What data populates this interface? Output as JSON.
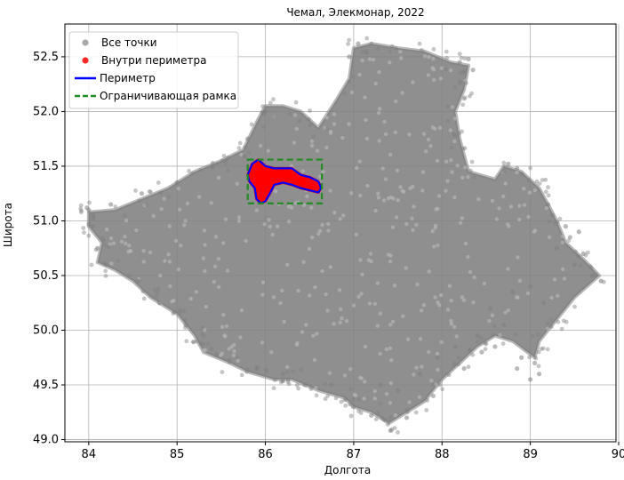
{
  "chart_data": {
    "type": "scatter",
    "title": "Чемал, Элекмонар, 2022",
    "xlabel": "Долгота",
    "ylabel": "Широта",
    "xlim": [
      83.73,
      89.97
    ],
    "ylim": [
      48.98,
      52.8
    ],
    "xticks": [
      "84",
      "85",
      "86",
      "87",
      "88",
      "89",
      "90"
    ],
    "yticks": [
      "49.0",
      "49.5",
      "50.0",
      "50.5",
      "51.0",
      "51.5",
      "52.0",
      "52.5"
    ],
    "grid": true,
    "legend_position": "top-left",
    "colors": {
      "all_points": "#808080",
      "inside": "#ff0000",
      "perimeter": "#0000ff",
      "bbox": "#228b22"
    },
    "legend": [
      {
        "label": "Все точки",
        "kind": "marker",
        "color": "#a9a9a9"
      },
      {
        "label": "Внутри периметра",
        "kind": "marker",
        "color": "#ff2a2a"
      },
      {
        "label": "Периметр",
        "kind": "line",
        "color": "#0000ff"
      },
      {
        "label": "Ограничивающая рамка",
        "kind": "dashed",
        "color": "#228b22"
      }
    ],
    "series": [
      {
        "name": "Все точки",
        "region_outline": [
          [
            84.0,
            51.08
          ],
          [
            84.3,
            51.1
          ],
          [
            84.6,
            51.2
          ],
          [
            84.9,
            51.3
          ],
          [
            85.2,
            51.45
          ],
          [
            85.5,
            51.55
          ],
          [
            85.75,
            51.65
          ],
          [
            85.9,
            51.9
          ],
          [
            86.0,
            52.05
          ],
          [
            86.2,
            52.05
          ],
          [
            86.4,
            52.0
          ],
          [
            86.6,
            51.85
          ],
          [
            86.8,
            52.1
          ],
          [
            86.95,
            52.3
          ],
          [
            87.0,
            52.58
          ],
          [
            87.2,
            52.62
          ],
          [
            87.5,
            52.58
          ],
          [
            87.8,
            52.55
          ],
          [
            87.95,
            52.5
          ],
          [
            88.1,
            52.45
          ],
          [
            88.3,
            52.42
          ],
          [
            88.25,
            52.2
          ],
          [
            88.15,
            52.0
          ],
          [
            88.2,
            51.75
          ],
          [
            88.3,
            51.45
          ],
          [
            88.6,
            51.38
          ],
          [
            88.7,
            51.5
          ],
          [
            88.9,
            51.45
          ],
          [
            89.1,
            51.3
          ],
          [
            89.3,
            51.0
          ],
          [
            89.4,
            50.8
          ],
          [
            89.6,
            50.65
          ],
          [
            89.78,
            50.5
          ],
          [
            89.5,
            50.3
          ],
          [
            89.3,
            50.1
          ],
          [
            89.1,
            49.9
          ],
          [
            89.05,
            49.75
          ],
          [
            88.8,
            49.9
          ],
          [
            88.6,
            49.95
          ],
          [
            88.4,
            49.85
          ],
          [
            88.2,
            49.7
          ],
          [
            88.0,
            49.55
          ],
          [
            87.8,
            49.35
          ],
          [
            87.6,
            49.25
          ],
          [
            87.4,
            49.15
          ],
          [
            87.2,
            49.25
          ],
          [
            87.0,
            49.3
          ],
          [
            86.9,
            49.38
          ],
          [
            86.6,
            49.45
          ],
          [
            86.3,
            49.55
          ],
          [
            86.1,
            49.55
          ],
          [
            85.8,
            49.62
          ],
          [
            85.6,
            49.7
          ],
          [
            85.3,
            49.8
          ],
          [
            85.2,
            49.95
          ],
          [
            85.0,
            50.15
          ],
          [
            84.7,
            50.3
          ],
          [
            84.5,
            50.45
          ],
          [
            84.3,
            50.55
          ],
          [
            84.1,
            50.62
          ],
          [
            84.15,
            50.8
          ],
          [
            84.0,
            50.95
          ],
          [
            84.0,
            51.08
          ]
        ],
        "scattered_points": [
          [
            84.0,
            51.1
          ],
          [
            84.05,
            51.05
          ],
          [
            83.98,
            51.12
          ],
          [
            89.3,
            50.75
          ],
          [
            89.5,
            50.6
          ],
          [
            89.7,
            50.5
          ],
          [
            89.8,
            50.45
          ],
          [
            89.6,
            50.7
          ],
          [
            89.55,
            50.9
          ],
          [
            89.4,
            50.95
          ],
          [
            88.9,
            49.75
          ],
          [
            89.05,
            49.7
          ],
          [
            89.1,
            49.6
          ],
          [
            89.0,
            49.55
          ],
          [
            88.85,
            49.65
          ],
          [
            88.6,
            49.85
          ],
          [
            88.45,
            49.8
          ],
          [
            88.25,
            49.65
          ],
          [
            87.9,
            49.4
          ],
          [
            87.6,
            49.2
          ],
          [
            87.35,
            49.18
          ],
          [
            87.2,
            49.22
          ],
          [
            88.3,
            52.48
          ],
          [
            88.35,
            52.38
          ],
          [
            88.2,
            52.45
          ],
          [
            87.05,
            52.62
          ],
          [
            86.95,
            52.5
          ],
          [
            85.8,
            51.75
          ],
          [
            86.0,
            52.0
          ],
          [
            88.75,
            51.52
          ],
          [
            88.85,
            51.48
          ],
          [
            89.2,
            51.15
          ],
          [
            89.25,
            51.05
          ],
          [
            89.45,
            50.85
          ],
          [
            89.15,
            50.25
          ],
          [
            88.7,
            50.05
          ],
          [
            88.55,
            50.2
          ],
          [
            88.8,
            50.35
          ],
          [
            89.0,
            50.4
          ],
          [
            88.4,
            49.95
          ],
          [
            88.15,
            49.85
          ],
          [
            87.95,
            49.75
          ],
          [
            87.75,
            49.6
          ],
          [
            87.5,
            49.45
          ],
          [
            87.3,
            49.5
          ],
          [
            86.75,
            49.5
          ],
          [
            86.45,
            49.5
          ],
          [
            86.2,
            49.6
          ],
          [
            85.9,
            49.65
          ],
          [
            85.45,
            49.78
          ],
          [
            85.1,
            50.05
          ],
          [
            84.8,
            50.25
          ],
          [
            84.55,
            50.45
          ],
          [
            84.2,
            50.6
          ],
          [
            84.1,
            50.75
          ],
          [
            84.05,
            50.95
          ],
          [
            84.25,
            51.15
          ],
          [
            84.6,
            51.25
          ],
          [
            85.0,
            51.35
          ],
          [
            85.4,
            51.5
          ]
        ]
      },
      {
        "name": "Внутри периметра",
        "polygon": [
          [
            85.8,
            51.42
          ],
          [
            85.85,
            51.52
          ],
          [
            85.92,
            51.56
          ],
          [
            86.0,
            51.5
          ],
          [
            86.1,
            51.48
          ],
          [
            86.3,
            51.48
          ],
          [
            86.4,
            51.42
          ],
          [
            86.5,
            51.4
          ],
          [
            86.6,
            51.36
          ],
          [
            86.63,
            51.3
          ],
          [
            86.6,
            51.26
          ],
          [
            86.5,
            51.28
          ],
          [
            86.4,
            51.3
          ],
          [
            86.3,
            51.33
          ],
          [
            86.2,
            51.35
          ],
          [
            86.1,
            51.33
          ],
          [
            86.05,
            51.25
          ],
          [
            86.0,
            51.18
          ],
          [
            85.95,
            51.16
          ],
          [
            85.9,
            51.2
          ],
          [
            85.88,
            51.3
          ],
          [
            85.82,
            51.36
          ],
          [
            85.8,
            51.42
          ]
        ]
      },
      {
        "name": "Периметр",
        "polygon": [
          [
            85.8,
            51.42
          ],
          [
            85.85,
            51.52
          ],
          [
            85.92,
            51.56
          ],
          [
            86.0,
            51.5
          ],
          [
            86.1,
            51.48
          ],
          [
            86.3,
            51.48
          ],
          [
            86.4,
            51.42
          ],
          [
            86.5,
            51.4
          ],
          [
            86.6,
            51.36
          ],
          [
            86.63,
            51.3
          ],
          [
            86.6,
            51.26
          ],
          [
            86.5,
            51.28
          ],
          [
            86.4,
            51.3
          ],
          [
            86.3,
            51.33
          ],
          [
            86.2,
            51.35
          ],
          [
            86.1,
            51.33
          ],
          [
            86.05,
            51.25
          ],
          [
            86.0,
            51.18
          ],
          [
            85.95,
            51.16
          ],
          [
            85.9,
            51.2
          ],
          [
            85.88,
            51.3
          ],
          [
            85.82,
            51.36
          ],
          [
            85.8,
            51.42
          ]
        ]
      },
      {
        "name": "Ограничивающая рамка",
        "rect": {
          "x0": 85.8,
          "x1": 86.64,
          "y0": 51.16,
          "y1": 51.56
        }
      }
    ]
  }
}
